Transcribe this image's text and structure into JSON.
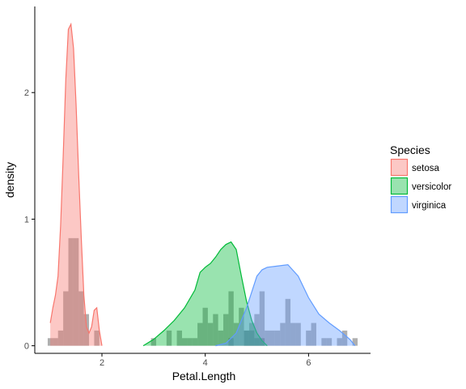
{
  "chart_data": {
    "type": "area",
    "subtype": "density-with-histogram",
    "title": "",
    "xlabel": "Petal.Length",
    "ylabel": "density",
    "xlim": [
      0.7,
      7.2
    ],
    "ylim": [
      -0.06,
      2.68
    ],
    "x_ticks": [
      2,
      4,
      6
    ],
    "y_ticks": [
      0,
      1,
      2
    ],
    "grid": false,
    "legend": {
      "title": "Species",
      "position": "right"
    },
    "series": [
      {
        "name": "setosa",
        "color": "#F8766D",
        "density": {
          "x": [
            1.0,
            1.05,
            1.1,
            1.15,
            1.2,
            1.25,
            1.3,
            1.35,
            1.4,
            1.45,
            1.5,
            1.55,
            1.6,
            1.65,
            1.7,
            1.75,
            1.8,
            1.85,
            1.9,
            1.95,
            2.0
          ],
          "y": [
            0.18,
            0.3,
            0.4,
            0.55,
            0.95,
            1.5,
            2.1,
            2.5,
            2.54,
            2.35,
            1.9,
            1.35,
            0.85,
            0.4,
            0.15,
            0.1,
            0.15,
            0.28,
            0.3,
            0.12,
            0.0
          ]
        },
        "histogram": {
          "x": [
            1.0,
            1.1,
            1.2,
            1.3,
            1.4,
            1.5,
            1.6,
            1.7,
            1.9
          ],
          "y": [
            0.06,
            0.06,
            0.12,
            0.43,
            0.85,
            0.85,
            0.43,
            0.25,
            0.12
          ]
        }
      },
      {
        "name": "versicolor",
        "color": "#00BA38",
        "density": {
          "x": [
            2.8,
            3.0,
            3.2,
            3.4,
            3.6,
            3.8,
            3.9,
            4.0,
            4.1,
            4.2,
            4.3,
            4.4,
            4.5,
            4.6,
            4.7,
            4.8,
            4.9,
            5.0,
            5.1,
            5.2
          ],
          "y": [
            0.0,
            0.05,
            0.12,
            0.2,
            0.3,
            0.44,
            0.58,
            0.62,
            0.65,
            0.7,
            0.76,
            0.8,
            0.82,
            0.76,
            0.55,
            0.35,
            0.2,
            0.1,
            0.04,
            0.0
          ]
        },
        "histogram": {
          "x": [
            3.0,
            3.3,
            3.5,
            3.6,
            3.7,
            3.8,
            3.9,
            4.0,
            4.1,
            4.2,
            4.3,
            4.4,
            4.5,
            4.6,
            4.7,
            4.8,
            4.9,
            5.0,
            5.1
          ],
          "y": [
            0.06,
            0.12,
            0.12,
            0.06,
            0.06,
            0.06,
            0.18,
            0.3,
            0.18,
            0.25,
            0.12,
            0.25,
            0.43,
            0.18,
            0.3,
            0.12,
            0.12,
            0.06,
            0.06
          ]
        }
      },
      {
        "name": "virginica",
        "color": "#619CFF",
        "density": {
          "x": [
            4.2,
            4.4,
            4.6,
            4.8,
            5.0,
            5.1,
            5.2,
            5.4,
            5.6,
            5.8,
            6.0,
            6.2,
            6.4,
            6.6,
            6.8,
            6.9
          ],
          "y": [
            0.0,
            0.02,
            0.1,
            0.3,
            0.55,
            0.6,
            0.62,
            0.63,
            0.64,
            0.55,
            0.38,
            0.25,
            0.18,
            0.12,
            0.05,
            0.0
          ]
        },
        "histogram": {
          "x": [
            4.5,
            4.8,
            4.9,
            5.0,
            5.1,
            5.2,
            5.3,
            5.4,
            5.5,
            5.6,
            5.7,
            5.8,
            6.0,
            6.1,
            6.3,
            6.4,
            6.6,
            6.7,
            6.9
          ],
          "y": [
            0.06,
            0.12,
            0.18,
            0.25,
            0.43,
            0.12,
            0.12,
            0.12,
            0.18,
            0.37,
            0.18,
            0.18,
            0.12,
            0.18,
            0.06,
            0.06,
            0.06,
            0.12,
            0.06
          ]
        }
      }
    ]
  }
}
